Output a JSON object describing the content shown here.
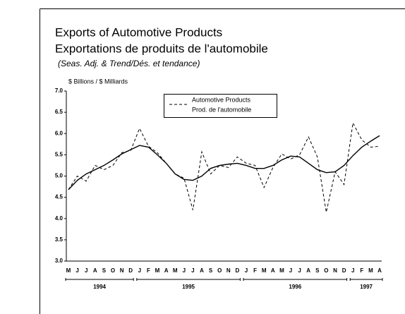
{
  "chart_data": {
    "type": "line",
    "title": "Exports of Automotive Products",
    "title_fr": "Exportations de produits de l'automobile",
    "subtitle": "(Seas. Adj. & Trend/Dés. et tendance)",
    "y_label": "$ Billions / $ Milliards",
    "categories": [
      "M",
      "J",
      "J",
      "A",
      "S",
      "O",
      "N",
      "D",
      "J",
      "F",
      "M",
      "A",
      "M",
      "J",
      "J",
      "A",
      "S",
      "O",
      "N",
      "D",
      "J",
      "F",
      "M",
      "A",
      "M",
      "J",
      "J",
      "A",
      "S",
      "O",
      "N",
      "D",
      "J",
      "F",
      "M",
      "A"
    ],
    "year_groups": [
      {
        "label": "1994",
        "count": 8
      },
      {
        "label": "1995",
        "count": 12
      },
      {
        "label": "1996",
        "count": 12
      },
      {
        "label": "1997",
        "count": 4
      }
    ],
    "series": [
      {
        "name": "Automotive Products",
        "name_fr": "Prod. de l'automobile",
        "color": "#000000",
        "dash": true,
        "values": [
          4.68,
          5.0,
          4.88,
          5.25,
          5.15,
          5.25,
          5.55,
          5.6,
          6.12,
          5.7,
          5.55,
          5.3,
          5.05,
          4.95,
          4.2,
          5.57,
          5.05,
          5.25,
          5.2,
          5.45,
          5.3,
          5.25,
          4.73,
          5.2,
          5.52,
          5.4,
          5.5,
          5.92,
          5.45,
          4.15,
          5.1,
          4.8,
          6.25,
          5.85,
          5.68,
          5.7
        ]
      },
      {
        "color": "#000000",
        "dash": false,
        "values": [
          4.68,
          4.9,
          5.05,
          5.15,
          5.25,
          5.38,
          5.52,
          5.62,
          5.72,
          5.68,
          5.5,
          5.3,
          5.05,
          4.92,
          4.9,
          5.0,
          5.18,
          5.25,
          5.28,
          5.3,
          5.25,
          5.18,
          5.18,
          5.25,
          5.38,
          5.47,
          5.45,
          5.3,
          5.15,
          5.08,
          5.1,
          5.25,
          5.48,
          5.68,
          5.82,
          5.95
        ]
      }
    ],
    "ylim": [
      3.0,
      7.0
    ],
    "yticks": [
      {
        "value": 3.0,
        "label": "3.0"
      },
      {
        "value": 3.5,
        "label": "3.5"
      },
      {
        "value": 4.0,
        "label": "4.0"
      },
      {
        "value": 4.5,
        "label": "4.5"
      },
      {
        "value": 5.0,
        "label": "5.0"
      },
      {
        "value": 5.5,
        "label": "5.5"
      },
      {
        "value": 6.0,
        "label": "6.0"
      },
      {
        "value": 6.5,
        "label": "6.5"
      },
      {
        "value": 7.0,
        "label": "7.0"
      }
    ]
  }
}
